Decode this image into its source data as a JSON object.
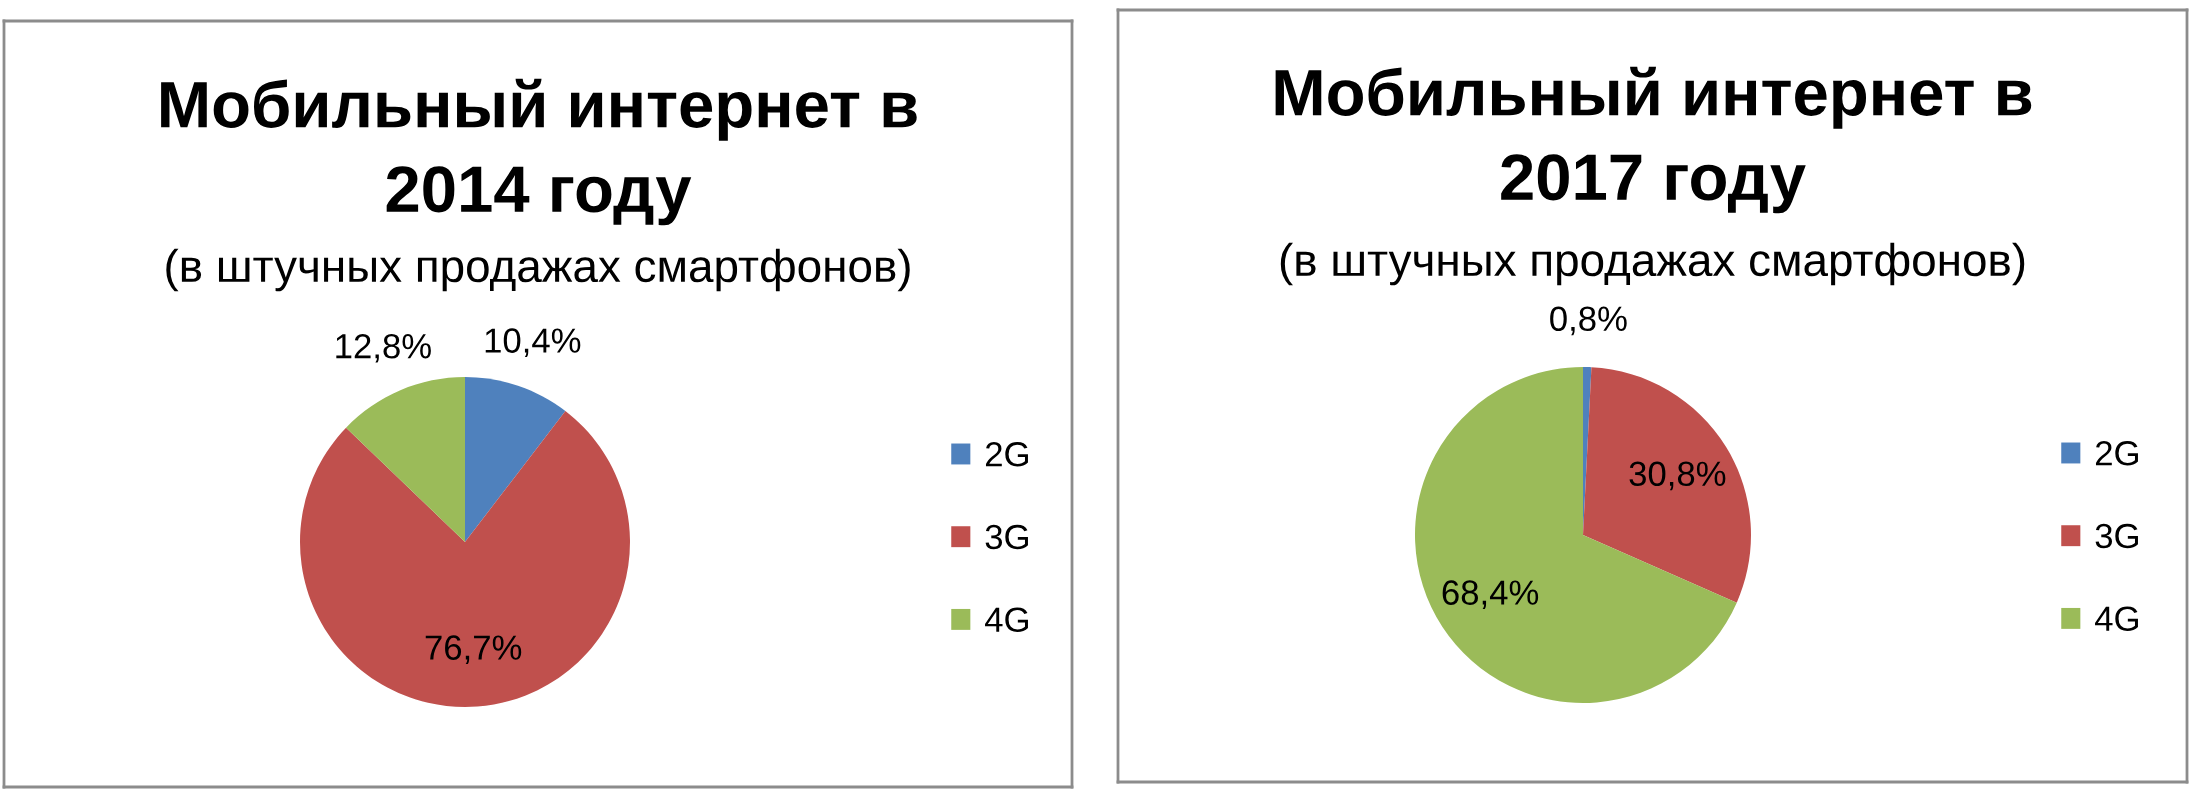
{
  "chart_data": [
    {
      "type": "pie",
      "title": "Мобильный интернет в\n2014 году",
      "subtitle": "(в штучных продажах смартфонов)",
      "categories": [
        "2G",
        "3G",
        "4G"
      ],
      "values": [
        10.4,
        76.7,
        12.8
      ],
      "colors": [
        "#4f81bd",
        "#c0504d",
        "#9bbb59"
      ],
      "value_labels": [
        "10,4%",
        "76,7%",
        "12,8%"
      ],
      "legend": "right"
    },
    {
      "type": "pie",
      "title": "Мобильный интернет в\n2017 году",
      "subtitle": "(в штучных продажах смартфонов)",
      "categories": [
        "2G",
        "3G",
        "4G"
      ],
      "values": [
        0.8,
        30.8,
        68.4
      ],
      "colors": [
        "#4f81bd",
        "#c0504d",
        "#9bbb59"
      ],
      "value_labels": [
        "0,8%",
        "30,8%",
        "68,4%"
      ],
      "legend": "right"
    }
  ]
}
